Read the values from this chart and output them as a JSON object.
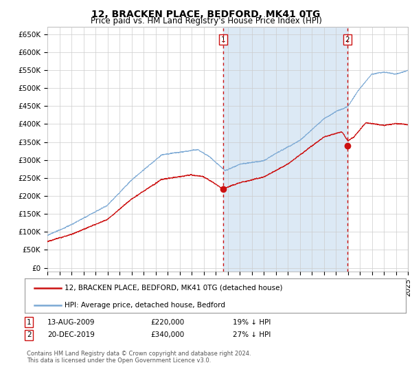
{
  "title": "12, BRACKEN PLACE, BEDFORD, MK41 0TG",
  "subtitle": "Price paid vs. HM Land Registry's House Price Index (HPI)",
  "ylabel_ticks": [
    "£0",
    "£50K",
    "£100K",
    "£150K",
    "£200K",
    "£250K",
    "£300K",
    "£350K",
    "£400K",
    "£450K",
    "£500K",
    "£550K",
    "£600K",
    "£650K"
  ],
  "ytick_values": [
    0,
    50000,
    100000,
    150000,
    200000,
    250000,
    300000,
    350000,
    400000,
    450000,
    500000,
    550000,
    600000,
    650000
  ],
  "ylim": [
    -10000,
    670000
  ],
  "xlim_year": [
    1995,
    2025
  ],
  "hpi_color": "#7aa8d4",
  "hpi_fill_color": "#dce9f5",
  "price_color": "#cc1111",
  "vline_color": "#cc1111",
  "transaction1_year": 2009.617,
  "transaction1_price": 220000,
  "transaction2_year": 2019.972,
  "transaction2_price": 340000,
  "legend_line1": "12, BRACKEN PLACE, BEDFORD, MK41 0TG (detached house)",
  "legend_line2": "HPI: Average price, detached house, Bedford",
  "table_row1": [
    "1",
    "13-AUG-2009",
    "£220,000",
    "19% ↓ HPI"
  ],
  "table_row2": [
    "2",
    "20-DEC-2019",
    "£340,000",
    "27% ↓ HPI"
  ],
  "footnote": "Contains HM Land Registry data © Crown copyright and database right 2024.\nThis data is licensed under the Open Government Licence v3.0.",
  "bg_color": "#ffffff",
  "grid_color": "#cccccc",
  "title_fontsize": 10,
  "subtitle_fontsize": 8.5,
  "tick_fontsize": 7.5
}
